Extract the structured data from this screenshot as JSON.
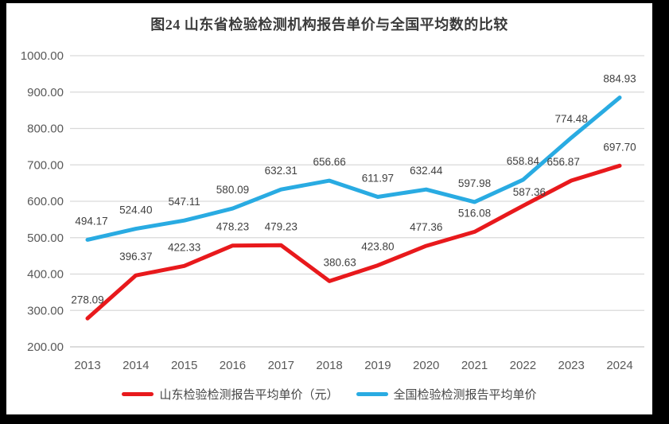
{
  "chart_data": {
    "type": "line",
    "title": "图24  山东省检验检测机构报告单价与全国平均数的比较",
    "categories": [
      "2013",
      "2014",
      "2015",
      "2016",
      "2017",
      "2018",
      "2019",
      "2020",
      "2021",
      "2022",
      "2023",
      "2024"
    ],
    "series": [
      {
        "name": "山东检验检测报告平均单价（元）",
        "color": "#e8191c",
        "values": [
          278.09,
          396.37,
          422.33,
          478.23,
          479.23,
          380.63,
          423.8,
          477.36,
          516.08,
          587.36,
          656.87,
          697.7
        ]
      },
      {
        "name": "全国检验检测报告平均单价",
        "color": "#29abe2",
        "values": [
          494.17,
          524.4,
          547.11,
          580.09,
          632.31,
          656.66,
          611.97,
          632.44,
          597.98,
          658.84,
          774.48,
          884.93
        ]
      }
    ],
    "xlabel": "",
    "ylabel": "",
    "ylim": [
      200,
      1000
    ],
    "ytick_step": 100,
    "ytick_labels": [
      "1000.00",
      "900.00",
      "800.00",
      "700.00",
      "600.00",
      "500.00",
      "400.00",
      "300.00",
      "200.00"
    ],
    "grid": true,
    "gridline_color": "#d9d9d9",
    "axis_label_color": "#595959",
    "data_label_color": "#404040",
    "data_labels": true,
    "legend_position": "bottom"
  }
}
